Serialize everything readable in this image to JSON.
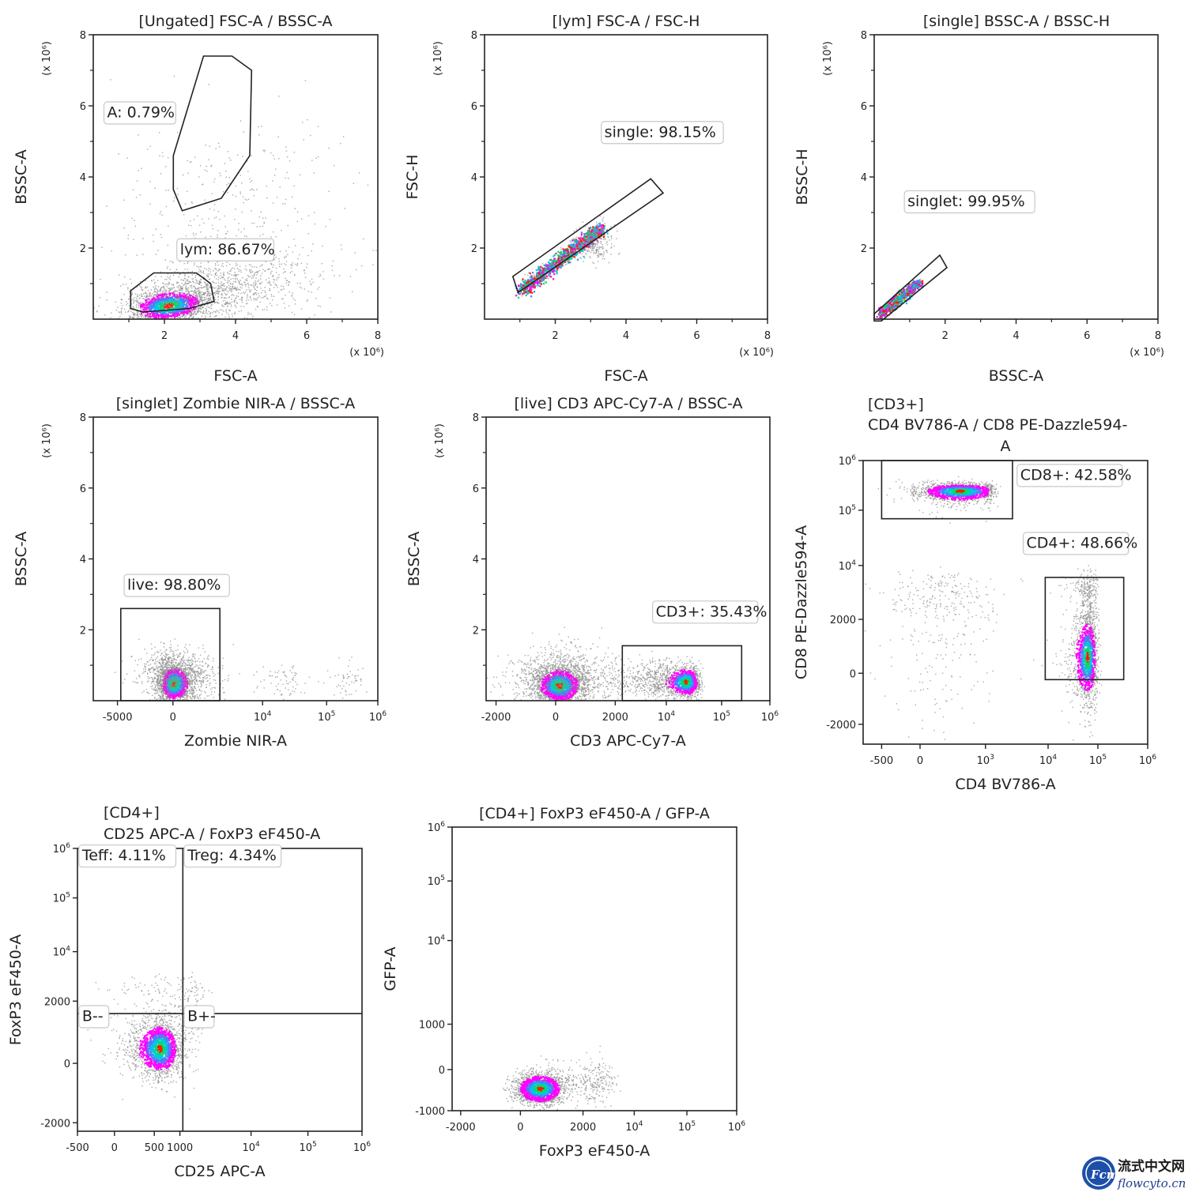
{
  "watermark": {
    "chinese": "流式中文网",
    "site": "flowcyto.cn",
    "logo_text": "Fcm"
  },
  "density_colors": [
    "#8c8c8c",
    "#ff00ff",
    "#4f7bff",
    "#00c8e0",
    "#00e060",
    "#ff1a00"
  ],
  "chart_data": [
    {
      "type": "scatter",
      "id": "p1",
      "title": [
        "[Ungated] FSC-A / BSSC-A"
      ],
      "xlabel": "FSC-A",
      "ylabel": "BSSC-A",
      "xscale": "linear",
      "yscale": "linear",
      "xlim": [
        0,
        8
      ],
      "ylim": [
        0,
        8
      ],
      "x_multiplier": "(x 10⁶)",
      "y_multiplier": "(x 10⁶)",
      "xticks": [
        {
          "v": 2,
          "t": "2"
        },
        {
          "v": 4,
          "t": "4"
        },
        {
          "v": 6,
          "t": "6"
        },
        {
          "v": 8,
          "t": "8"
        }
      ],
      "yticks": [
        {
          "v": 2,
          "t": "2"
        },
        {
          "v": 4,
          "t": "4"
        },
        {
          "v": 6,
          "t": "6"
        },
        {
          "v": 8,
          "t": "8"
        }
      ],
      "populations": [
        {
          "cx": 2.1,
          "cy": 0.4,
          "sx": 0.6,
          "sy": 0.25,
          "n": 1400,
          "rot": 0.12,
          "core": true
        },
        {
          "cx": 3.3,
          "cy": 0.8,
          "sx": 1.3,
          "sy": 0.45,
          "n": 1200,
          "rot": 0.22,
          "core": false
        },
        {
          "cx": 3.8,
          "cy": 2.5,
          "sx": 1.6,
          "sy": 1.6,
          "n": 450,
          "rot": 0.0,
          "core": false
        }
      ],
      "gates": [
        {
          "name": "A",
          "percent": "0.79%",
          "label": "A: 0.79%",
          "type": "polygon",
          "points": [
            [
              3.1,
              7.4
            ],
            [
              3.9,
              7.4
            ],
            [
              4.45,
              7.0
            ],
            [
              4.4,
              4.6
            ],
            [
              3.6,
              3.4
            ],
            [
              2.5,
              3.05
            ],
            [
              2.25,
              3.65
            ],
            [
              2.25,
              4.6
            ]
          ],
          "label_at": [
            0.3,
            5.8
          ]
        },
        {
          "name": "lym",
          "percent": "86.67%",
          "label": "lym: 86.67%",
          "type": "polygon",
          "points": [
            [
              1.7,
              1.3
            ],
            [
              2.9,
              1.3
            ],
            [
              3.3,
              1.0
            ],
            [
              3.4,
              0.5
            ],
            [
              2.7,
              0.3
            ],
            [
              1.4,
              0.2
            ],
            [
              1.05,
              0.3
            ],
            [
              1.05,
              0.8
            ]
          ],
          "label_at": [
            2.35,
            1.95
          ]
        }
      ]
    },
    {
      "type": "scatter",
      "id": "p2",
      "title": [
        "[lym] FSC-A / FSC-H"
      ],
      "xlabel": "FSC-A",
      "ylabel": "FSC-H",
      "xscale": "linear",
      "yscale": "linear",
      "xlim": [
        0,
        8
      ],
      "ylim": [
        0,
        8
      ],
      "x_multiplier": "(x 10⁶)",
      "y_multiplier": "(x 10⁶)",
      "xticks": [
        {
          "v": 2,
          "t": "2"
        },
        {
          "v": 4,
          "t": "4"
        },
        {
          "v": 6,
          "t": "6"
        },
        {
          "v": 8,
          "t": "8"
        }
      ],
      "yticks": [
        {
          "v": 2,
          "t": "2"
        },
        {
          "v": 4,
          "t": "4"
        },
        {
          "v": 6,
          "t": "6"
        },
        {
          "v": 8,
          "t": "8"
        }
      ],
      "populations": [
        {
          "line": [
            [
              1.0,
              0.8
            ],
            [
              3.3,
              2.6
            ]
          ],
          "spread": 0.08,
          "n": 1300,
          "core": true
        },
        {
          "cx": 3.1,
          "cy": 2.15,
          "sx": 0.25,
          "sy": 0.25,
          "n": 250,
          "rot": 0.0,
          "core": false
        }
      ],
      "gates": [
        {
          "name": "single",
          "percent": "98.15%",
          "label": "single: 98.15%",
          "type": "polygon",
          "points": [
            [
              0.8,
              1.2
            ],
            [
              4.7,
              3.95
            ],
            [
              5.05,
              3.55
            ],
            [
              0.95,
              0.75
            ]
          ],
          "label_at": [
            3.3,
            5.25
          ]
        }
      ]
    },
    {
      "type": "scatter",
      "id": "p3",
      "title": [
        "[single] BSSC-A / BSSC-H"
      ],
      "xlabel": "BSSC-A",
      "ylabel": "BSSC-H",
      "xscale": "linear",
      "yscale": "linear",
      "xlim": [
        0,
        8
      ],
      "ylim": [
        0,
        8
      ],
      "x_multiplier": "(x 10⁶)",
      "y_multiplier": "(x 10⁶)",
      "xticks": [
        {
          "v": 2,
          "t": "2"
        },
        {
          "v": 4,
          "t": "4"
        },
        {
          "v": 6,
          "t": "6"
        },
        {
          "v": 8,
          "t": "8"
        }
      ],
      "yticks": [
        {
          "v": 2,
          "t": "2"
        },
        {
          "v": 4,
          "t": "4"
        },
        {
          "v": 6,
          "t": "6"
        },
        {
          "v": 8,
          "t": "8"
        }
      ],
      "populations": [
        {
          "line": [
            [
              0.15,
              0.15
            ],
            [
              1.25,
              1.05
            ]
          ],
          "spread": 0.06,
          "n": 700,
          "core": true
        }
      ],
      "gates": [
        {
          "name": "singlet",
          "percent": "99.95%",
          "label": "singlet: 99.95%",
          "type": "polygon",
          "points": [
            [
              0.0,
              0.15
            ],
            [
              1.85,
              1.8
            ],
            [
              2.05,
              1.45
            ],
            [
              0.2,
              -0.05
            ],
            [
              0.0,
              -0.05
            ]
          ],
          "label_at": [
            0.85,
            3.3
          ]
        }
      ]
    },
    {
      "type": "scatter",
      "id": "p4",
      "title": [
        "[singlet] Zombie NIR-A / BSSC-A"
      ],
      "xlabel": "Zombie NIR-A",
      "ylabel": "BSSC-A",
      "xscale": "biex",
      "yscale": "linear",
      "xlim": [
        -6500,
        1000000
      ],
      "ylim": [
        0,
        8
      ],
      "y_multiplier": "(x 10⁶)",
      "xticks": [
        {
          "v": -5000,
          "t": "-5000"
        },
        {
          "v": 0,
          "t": "0"
        },
        {
          "v": 10000,
          "t": "10",
          "e": "4"
        },
        {
          "v": 100000,
          "t": "10",
          "e": "5"
        },
        {
          "v": 1000000,
          "t": "10",
          "e": "6"
        }
      ],
      "yticks": [
        {
          "v": 2,
          "t": "2"
        },
        {
          "v": 4,
          "t": "4"
        },
        {
          "v": 6,
          "t": "6"
        },
        {
          "v": 8,
          "t": "8"
        }
      ],
      "populations": [
        {
          "cx": 0,
          "cy": 0.5,
          "sx": 700,
          "sy": 0.3,
          "n": 1500,
          "rot": 0,
          "core": true
        },
        {
          "cx": 0,
          "cy": 0.75,
          "sx": 1500,
          "sy": 0.35,
          "n": 900,
          "rot": 0,
          "core": false
        },
        {
          "cx": 20000,
          "cy": 0.5,
          "sx": 12000,
          "sy": 0.25,
          "n": 80,
          "rot": 0,
          "core": false
        },
        {
          "cx": 250000,
          "cy": 0.6,
          "sx": 130000,
          "sy": 0.25,
          "n": 60,
          "rot": 0,
          "core": false
        }
      ],
      "gates": [
        {
          "name": "live",
          "percent": "98.80%",
          "label": "live: 98.80%",
          "type": "rect",
          "x": [
            -4700,
            3300
          ],
          "y": [
            0.0,
            2.6
          ],
          "label_at": [
            -4400,
            3.25
          ]
        }
      ]
    },
    {
      "type": "scatter",
      "id": "p5",
      "title": [
        "[live] CD3 APC-Cy7-A / BSSC-A"
      ],
      "xlabel": "CD3 APC-Cy7-A",
      "ylabel": "BSSC-A",
      "xscale": "biex",
      "yscale": "linear",
      "xlim": [
        -2300,
        1000000
      ],
      "ylim": [
        0,
        8
      ],
      "y_multiplier": "(x 10⁶)",
      "xticks": [
        {
          "v": -2000,
          "t": "-2000"
        },
        {
          "v": 0,
          "t": "0"
        },
        {
          "v": 2000,
          "t": "2000"
        },
        {
          "v": 10000,
          "t": "10",
          "e": "4"
        },
        {
          "v": 100000,
          "t": "10",
          "e": "5"
        },
        {
          "v": 1000000,
          "t": "10",
          "e": "6"
        }
      ],
      "yticks": [
        {
          "v": 2,
          "t": "2"
        },
        {
          "v": 4,
          "t": "4"
        },
        {
          "v": 6,
          "t": "6"
        },
        {
          "v": 8,
          "t": "8"
        }
      ],
      "populations": [
        {
          "cx": 100,
          "cy": 0.45,
          "sx": 450,
          "sy": 0.3,
          "n": 1600,
          "rot": 0,
          "core": true
        },
        {
          "cx": 300,
          "cy": 0.7,
          "sx": 900,
          "sy": 0.4,
          "n": 900,
          "rot": 0,
          "core": false
        },
        {
          "cx": 22000,
          "cy": 0.55,
          "sx": 9000,
          "sy": 0.25,
          "n": 900,
          "rot": 0,
          "core": true
        },
        {
          "cx": 6000,
          "cy": 0.6,
          "sx": 3500,
          "sy": 0.3,
          "n": 500,
          "rot": 0,
          "core": false
        }
      ],
      "gates": [
        {
          "name": "CD3+",
          "percent": "35.43%",
          "label": "CD3+: 35.43%",
          "type": "rect",
          "x": [
            2500,
            260000
          ],
          "y": [
            0.0,
            1.55
          ],
          "label_at": [
            6500,
            2.5
          ]
        }
      ]
    },
    {
      "type": "scatter",
      "id": "p6",
      "title": [
        "[CD3+]",
        "CD4 BV786-A / CD8 PE-Dazzle594-",
        "A"
      ],
      "xlabel": "CD4 BV786-A",
      "ylabel": "CD8 PE-Dazzle594-A",
      "xscale": "biex3",
      "yscale": "biex3",
      "xlim": [
        -700,
        1000000
      ],
      "ylim": [
        -2800,
        1000000
      ],
      "xticks": [
        {
          "v": -500,
          "t": "-500"
        },
        {
          "v": 0,
          "t": "0"
        },
        {
          "v": 1000,
          "t": "10",
          "e": "3"
        },
        {
          "v": 10000,
          "t": "10",
          "e": "4"
        },
        {
          "v": 100000,
          "t": "10",
          "e": "5"
        },
        {
          "v": 1000000,
          "t": "10",
          "e": "6"
        }
      ],
      "yticks": [
        {
          "v": -2000,
          "t": "-2000"
        },
        {
          "v": 0,
          "t": "0"
        },
        {
          "v": 2000,
          "t": "2000"
        },
        {
          "v": 10000,
          "t": "10",
          "e": "4"
        },
        {
          "v": 100000,
          "t": "10",
          "e": "5"
        },
        {
          "v": 1000000,
          "t": "10",
          "e": "6"
        }
      ],
      "populations": [
        {
          "cx": 600,
          "cy": 250000,
          "sx": 350,
          "sy": 60000,
          "n": 1300,
          "rot": 0,
          "core": true
        },
        {
          "cx": 300,
          "cy": 3000,
          "sx": 450,
          "sy": 2500,
          "n": 350,
          "rot": 0,
          "core": false
        },
        {
          "cx": 60000,
          "cy": 600,
          "sx": 18000,
          "sy": 900,
          "n": 1200,
          "rot": 0,
          "core": true
        },
        {
          "cx": 60000,
          "cy": 3500,
          "sx": 20000,
          "sy": 2500,
          "n": 400,
          "rot": 0,
          "core": false
        }
      ],
      "gates": [
        {
          "name": "CD8+",
          "percent": "42.58%",
          "label": "CD8+: 42.58%",
          "type": "rect",
          "x": [
            -500,
            2700
          ],
          "y": [
            70000,
            1000000
          ],
          "label_at": [
            3200,
            500000
          ]
        },
        {
          "name": "CD4+",
          "percent": "48.66%",
          "label": "CD4+: 48.66%",
          "type": "rect",
          "x": [
            9000,
            330000
          ],
          "y": [
            -250,
            7000
          ],
          "label_at": [
            4000,
            25000
          ]
        }
      ]
    },
    {
      "type": "scatter",
      "id": "p7",
      "title": [
        "[CD4+]",
        "CD25 APC-A / FoxP3 eF450-A"
      ],
      "xlabel": "CD25 APC-A",
      "ylabel": "FoxP3 eF450-A",
      "xscale": "biex7",
      "yscale": "biex3",
      "xlim": [
        -500,
        1000000
      ],
      "ylim": [
        -2300,
        1000000
      ],
      "xticks": [
        {
          "v": -500,
          "t": "-500"
        },
        {
          "v": 0,
          "t": "0"
        },
        {
          "v": 500,
          "t": "500"
        },
        {
          "v": 1000,
          "t": "1000"
        },
        {
          "v": 10000,
          "t": "10",
          "e": "4"
        },
        {
          "v": 100000,
          "t": "10",
          "e": "5"
        },
        {
          "v": 1000000,
          "t": "10",
          "e": "6"
        }
      ],
      "yticks": [
        {
          "v": -2000,
          "t": "-2000"
        },
        {
          "v": 0,
          "t": "0"
        },
        {
          "v": 2000,
          "t": "2000"
        },
        {
          "v": 10000,
          "t": "10",
          "e": "4"
        },
        {
          "v": 100000,
          "t": "10",
          "e": "5"
        },
        {
          "v": 1000000,
          "t": "10",
          "e": "6"
        }
      ],
      "populations": [
        {
          "cx": 600,
          "cy": 500,
          "sx": 220,
          "sy": 500,
          "n": 1500,
          "rot": 0,
          "core": true
        },
        {
          "cx": 900,
          "cy": 1800,
          "sx": 600,
          "sy": 1200,
          "n": 300,
          "rot": 0,
          "core": false
        }
      ],
      "quadrant": {
        "x": 1100,
        "y": 1600
      },
      "gates": [
        {
          "name": "Teff",
          "percent": "4.11%",
          "label": "Teff: 4.11%",
          "type": "label",
          "label_at": [
            -480,
            700000
          ]
        },
        {
          "name": "Treg",
          "percent": "4.34%",
          "label": "Treg: 4.34%",
          "type": "label",
          "label_at": [
            1150,
            700000
          ]
        },
        {
          "name": "B--",
          "percent": "",
          "label": "B--",
          "type": "label",
          "label_at": [
            -480,
            1500
          ]
        },
        {
          "name": "B+-",
          "percent": "",
          "label": "B+-",
          "type": "label",
          "label_at": [
            1150,
            1500
          ]
        }
      ]
    },
    {
      "type": "scatter",
      "id": "p8",
      "title": [
        "[CD4+] FoxP3 eF450-A / GFP-A"
      ],
      "xlabel": "FoxP3 eF450-A",
      "ylabel": "GFP-A",
      "xscale": "biex8",
      "yscale": "biex8y",
      "xlim": [
        -2300,
        1000000
      ],
      "ylim": [
        -1000,
        1000000
      ],
      "xticks": [
        {
          "v": -2000,
          "t": "-2000"
        },
        {
          "v": 0,
          "t": "0"
        },
        {
          "v": 2000,
          "t": "2000"
        },
        {
          "v": 10000,
          "t": "10",
          "e": "4"
        },
        {
          "v": 100000,
          "t": "10",
          "e": "5"
        },
        {
          "v": 1000000,
          "t": "10",
          "e": "6"
        }
      ],
      "yticks": [
        {
          "v": -1000,
          "t": "-1000"
        },
        {
          "v": 0,
          "t": "0"
        },
        {
          "v": 1000,
          "t": "1000"
        },
        {
          "v": 10000,
          "t": "10",
          "e": "4"
        },
        {
          "v": 100000,
          "t": "10",
          "e": "5"
        },
        {
          "v": 1000000,
          "t": "10",
          "e": "6"
        }
      ],
      "populations": [
        {
          "cx": 600,
          "cy": -450,
          "sx": 450,
          "sy": 220,
          "n": 1500,
          "rot": 0,
          "core": true
        },
        {
          "cx": 2500,
          "cy": -300,
          "sx": 1200,
          "sy": 250,
          "n": 300,
          "rot": 0,
          "core": false
        }
      ],
      "gates": []
    }
  ]
}
